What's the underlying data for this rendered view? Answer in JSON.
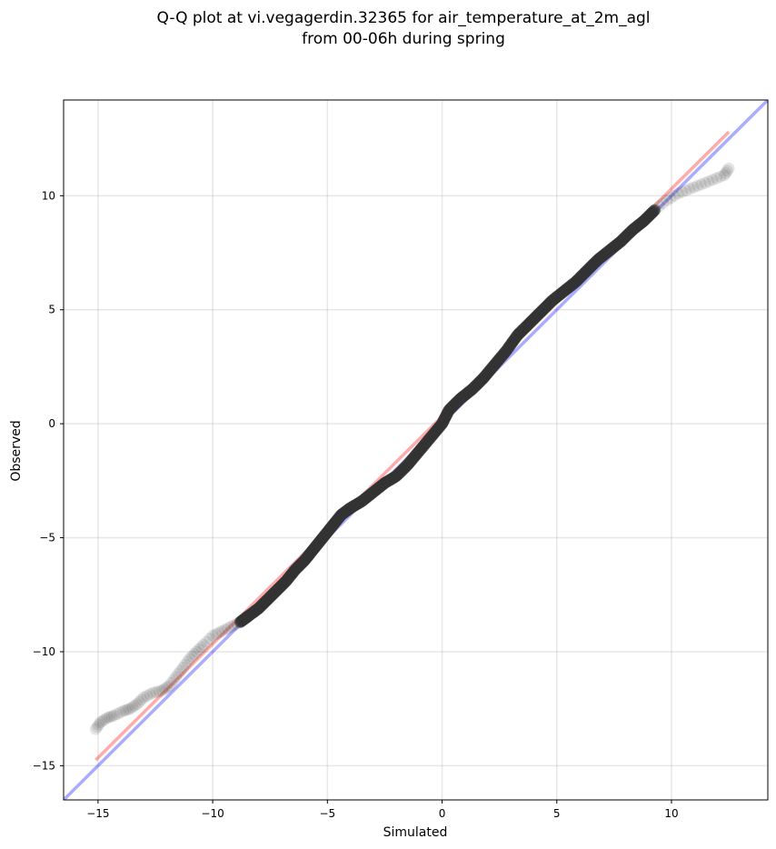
{
  "chart_data": {
    "type": "scatter",
    "title_line1": "Q-Q plot at vi.vegagerdin.32365 for air_temperature_at_2m_agl",
    "title_line2": "from 00-06h during spring",
    "xlabel": "Simulated",
    "ylabel": "Observed",
    "xlim": [
      -16.5,
      14.2
    ],
    "ylim": [
      -16.5,
      14.2
    ],
    "xticks": [
      -15,
      -10,
      -5,
      0,
      5,
      10
    ],
    "yticks": [
      -15,
      -10,
      -5,
      0,
      5,
      10
    ],
    "xtick_labels": [
      "−15",
      "−10",
      "−5",
      "0",
      "5",
      "10"
    ],
    "ytick_labels": [
      "−15",
      "−10",
      "−5",
      "0",
      "5",
      "10"
    ],
    "grid": true,
    "colors": {
      "points": "#333333",
      "identity_line": "#0000ff",
      "fit_line": "#ff0000",
      "points_trace": "#8b0000",
      "points_trace_low": "#00008b"
    },
    "series": [
      {
        "kind": "quantile_points",
        "points": [
          [
            -15.1,
            -13.4
          ],
          [
            -14.9,
            -13.1
          ],
          [
            -14.6,
            -12.9
          ],
          [
            -14.3,
            -12.8
          ],
          [
            -13.9,
            -12.6
          ],
          [
            -13.6,
            -12.5
          ],
          [
            -13.3,
            -12.3
          ],
          [
            -13.0,
            -12.0
          ],
          [
            -12.6,
            -11.8
          ],
          [
            -12.2,
            -11.7
          ],
          [
            -11.9,
            -11.5
          ],
          [
            -11.6,
            -11.1
          ],
          [
            -11.3,
            -10.7
          ],
          [
            -11.0,
            -10.3
          ],
          [
            -10.7,
            -10.0
          ],
          [
            -10.4,
            -9.7
          ],
          [
            -10.0,
            -9.3
          ],
          [
            -9.6,
            -9.1
          ],
          [
            -9.2,
            -8.9
          ],
          [
            -8.8,
            -8.7
          ],
          [
            -8.4,
            -8.4
          ],
          [
            -8.0,
            -8.1
          ],
          [
            -7.6,
            -7.7
          ],
          [
            -7.2,
            -7.3
          ],
          [
            -6.8,
            -6.9
          ],
          [
            -6.4,
            -6.4
          ],
          [
            -6.0,
            -6.0
          ],
          [
            -5.6,
            -5.5
          ],
          [
            -5.2,
            -5.0
          ],
          [
            -4.8,
            -4.5
          ],
          [
            -4.4,
            -4.0
          ],
          [
            -4.0,
            -3.7
          ],
          [
            -3.5,
            -3.4
          ],
          [
            -3.0,
            -3.0
          ],
          [
            -2.5,
            -2.6
          ],
          [
            -2.0,
            -2.3
          ],
          [
            -1.5,
            -1.8
          ],
          [
            -1.0,
            -1.2
          ],
          [
            -0.5,
            -0.6
          ],
          [
            0.0,
            0.0
          ],
          [
            0.3,
            0.6
          ],
          [
            0.8,
            1.1
          ],
          [
            1.3,
            1.5
          ],
          [
            1.8,
            2.0
          ],
          [
            2.3,
            2.6
          ],
          [
            2.8,
            3.2
          ],
          [
            3.3,
            3.9
          ],
          [
            3.8,
            4.4
          ],
          [
            4.3,
            4.9
          ],
          [
            4.8,
            5.4
          ],
          [
            5.3,
            5.8
          ],
          [
            5.8,
            6.2
          ],
          [
            6.3,
            6.7
          ],
          [
            6.8,
            7.2
          ],
          [
            7.3,
            7.6
          ],
          [
            7.8,
            8.0
          ],
          [
            8.3,
            8.5
          ],
          [
            8.8,
            8.9
          ],
          [
            9.3,
            9.4
          ],
          [
            9.8,
            9.8
          ],
          [
            10.3,
            10.1
          ],
          [
            10.8,
            10.3
          ],
          [
            11.3,
            10.5
          ],
          [
            11.8,
            10.7
          ],
          [
            12.3,
            10.9
          ],
          [
            12.5,
            11.2
          ]
        ]
      },
      {
        "kind": "identity_line",
        "points": [
          [
            -16.5,
            -16.5
          ],
          [
            14.2,
            14.2
          ]
        ]
      },
      {
        "kind": "fit_line",
        "points": [
          [
            -15.1,
            -14.75
          ],
          [
            12.5,
            12.8
          ]
        ]
      }
    ]
  }
}
